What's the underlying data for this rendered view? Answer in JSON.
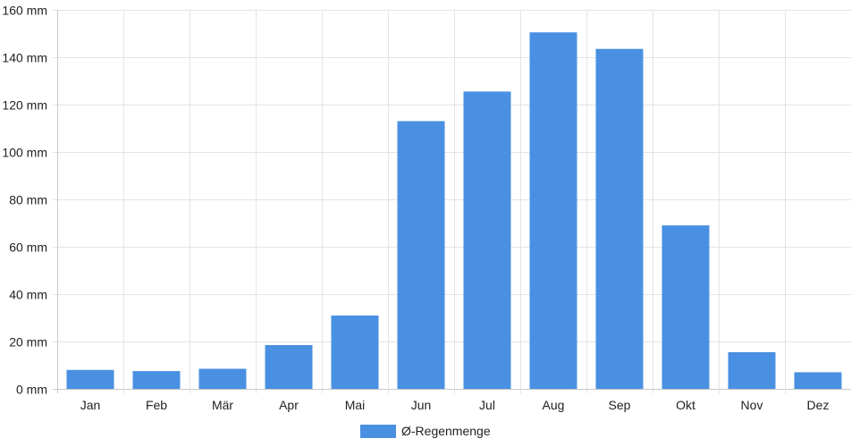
{
  "chart_data": {
    "type": "bar",
    "title": "",
    "xlabel": "",
    "ylabel": "",
    "categories": [
      "Jan",
      "Feb",
      "Mär",
      "Apr",
      "Mai",
      "Jun",
      "Jul",
      "Aug",
      "Sep",
      "Okt",
      "Nov",
      "Dez"
    ],
    "series": [
      {
        "name": "Ø-Regenmenge",
        "color": "#4a90e2",
        "values": [
          8,
          7.5,
          8.5,
          18.5,
          31,
          113,
          125.5,
          150.5,
          143.5,
          69,
          15.5,
          7
        ]
      }
    ],
    "ylim": [
      0,
      160
    ],
    "y_ticks": [
      "0 mm",
      "20 mm",
      "40 mm",
      "60 mm",
      "80 mm",
      "100 mm",
      "120 mm",
      "140 mm",
      "160 mm"
    ],
    "grid": true,
    "legend_position": "bottom"
  }
}
